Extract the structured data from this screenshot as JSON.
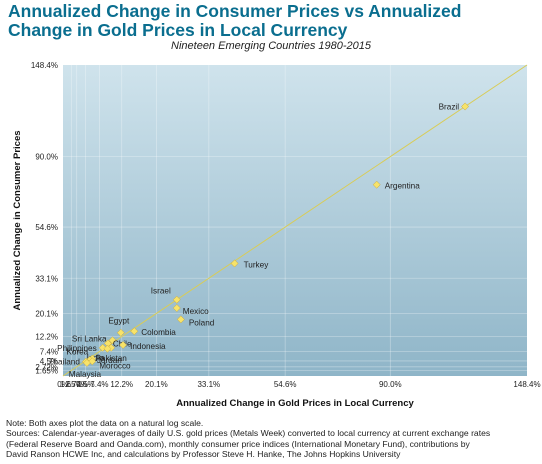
{
  "title_line1": "Annualized Change in Consumer Prices vs Annualized",
  "title_line2": "Change in Gold Prices in Local Currency",
  "subtitle": "Nineteen Emerging Countries 1980-2015",
  "colors": {
    "title": "#0a6e8f",
    "plot_bg_top": "#cfe3ec",
    "plot_bg_bottom": "#8fb5c8",
    "point": "#f7e36a",
    "point_stroke": "#c9a73a",
    "trend_line": "#d8cc58"
  },
  "chart_data": {
    "type": "scatter",
    "scale": "natural log",
    "xlabel": "Annualized Change in Gold Prices in Local Currency",
    "ylabel": "Annualized Change in Consumer Prices",
    "x_tick_labels": [
      "0%",
      "1.65%",
      "2.72%",
      "4.5%",
      "7.4%",
      "12.2%",
      "20.1%",
      "33.1%",
      "54.6%",
      "90.0%",
      "148.4%"
    ],
    "y_tick_labels": [
      "148.4%",
      "90.0%",
      "54.6%",
      "33.1%",
      "20.1%",
      "12.2%",
      "7.4%",
      "4.5%",
      "2.72%",
      "1.65%"
    ],
    "grid": true,
    "reference_line": "y = x",
    "points": [
      {
        "label": "Brazil",
        "x": 120,
        "y": 120
      },
      {
        "label": "Argentina",
        "x": 85,
        "y": 75
      },
      {
        "label": "Turkey",
        "x": 40,
        "y": 39
      },
      {
        "label": "Israel",
        "x": 25,
        "y": 25
      },
      {
        "label": "Mexico",
        "x": 25,
        "y": 22
      },
      {
        "label": "Poland",
        "x": 26,
        "y": 18
      },
      {
        "label": "Colombia",
        "x": 15,
        "y": 14
      },
      {
        "label": "Egypt",
        "x": 12,
        "y": 13.5
      },
      {
        "label": "Sri Lanka",
        "x": 10.2,
        "y": 11
      },
      {
        "label": "Chile",
        "x": 9.2,
        "y": 10
      },
      {
        "label": "Indonesia",
        "x": 12.5,
        "y": 9.5
      },
      {
        "label": "Philippines",
        "x": 8.1,
        "y": 8.6
      },
      {
        "label": "Pakistan",
        "x": 9.9,
        "y": 8.6
      },
      {
        "label": "India",
        "x": 9.1,
        "y": 8.3
      },
      {
        "label": "Korea",
        "x": 5.9,
        "y": 5.2
      },
      {
        "label": "Jordan",
        "x": 5.4,
        "y": 4.8
      },
      {
        "label": "Thailand",
        "x": 4.6,
        "y": 4.3
      },
      {
        "label": "Morocco",
        "x": 5.9,
        "y": 4.4
      },
      {
        "label": "Malaysia",
        "x": 4.8,
        "y": 3.9
      }
    ]
  },
  "notes": [
    "Note: Both axes plot the data on a natural log scale.",
    "Sources: Calendar-year-averages of daily U.S. gold prices (Metals Week) converted to local currency at current exchange rates",
    "(Federal Reserve Board and Oanda.com), monthly consumer price indices (International Monetary Fund), contributions by",
    "David Ranson HCWE Inc, and calculations by Professor Steve H. Hanke, The Johns Hopkins University"
  ]
}
